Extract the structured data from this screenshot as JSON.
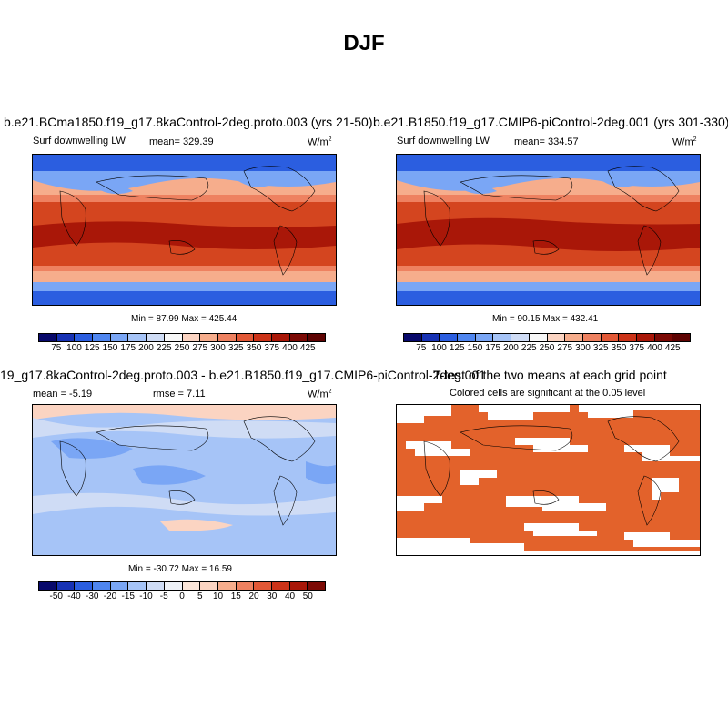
{
  "page_title": "DJF",
  "panels": {
    "top_left": {
      "title": "b.e21.BCma1850.f19_g17.8kaControl-2deg.proto.003 (yrs 21-50)",
      "left": "Surf downwelling LW",
      "center": "mean= 329.39",
      "units": "W/m",
      "units_sup": "2",
      "minmax": "Min = 87.99 Max = 425.44"
    },
    "top_right": {
      "title": "b.e21.B1850.f19_g17.CMIP6-piControl-2deg.001 (yrs 301-330)",
      "left": "Surf downwelling LW",
      "center": "mean= 334.57",
      "units": "W/m",
      "units_sup": "2",
      "minmax": "Min = 90.15 Max = 432.41"
    },
    "bottom_left": {
      "title": "19_g17.8kaControl-2deg.proto.003 - b.e21.B1850.f19_g17.CMIP6-piControl-2deg.001",
      "left": "mean = -5.19",
      "center": "rmse = 7.11",
      "units": "W/m",
      "units_sup": "2",
      "minmax": "Min = -30.72 Max = 16.59"
    },
    "bottom_right": {
      "title": "T-test of the two means at each grid point",
      "subtitle": "Colored cells are significant at the 0.05 level"
    }
  },
  "colorbar_abs": {
    "labels": [
      "75",
      "100",
      "125",
      "150",
      "175",
      "200",
      "225",
      "250",
      "275",
      "300",
      "325",
      "350",
      "375",
      "400",
      "425"
    ],
    "colors": [
      "#08096b",
      "#1732b4",
      "#2b5ee0",
      "#4f86f0",
      "#7aa6f5",
      "#a6c4f7",
      "#cfdcf5",
      "#f7f7f7",
      "#fbd4c2",
      "#f6ad8c",
      "#ee8160",
      "#e25836",
      "#cc3318",
      "#a91708",
      "#7c0a05",
      "#5e0302"
    ]
  },
  "colorbar_diff": {
    "labels": [
      "-50",
      "-40",
      "-30",
      "-20",
      "-15",
      "-10",
      "-5",
      "0",
      "5",
      "10",
      "15",
      "20",
      "30",
      "40",
      "50"
    ],
    "colors": [
      "#08096b",
      "#1732b4",
      "#2b5ee0",
      "#4f86f0",
      "#7aa6f5",
      "#a6c4f7",
      "#cfdcf5",
      "#eef1f7",
      "#fbe6da",
      "#fbd4c2",
      "#f6ad8c",
      "#ee8160",
      "#e25836",
      "#cc3318",
      "#a91708",
      "#7c0a05"
    ]
  },
  "map_colors": {
    "ocean_warm": "#d4451f",
    "ocean_hot": "#a91708",
    "mid": "#ee8160",
    "cool": "#f6ad8c",
    "cold": "#7aa6f5",
    "polar": "#2b5ee0",
    "diff_base": "#a6c4f7",
    "diff_light": "#cfdcf5",
    "diff_strong": "#7aa6f5",
    "diff_pos": "#fbd4c2",
    "ttest": "#e3622b"
  }
}
